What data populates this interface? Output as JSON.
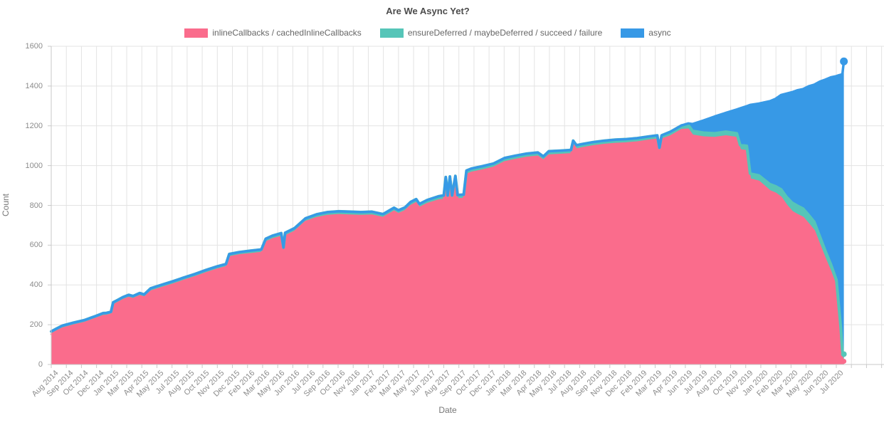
{
  "title": "Are We Async Yet?",
  "legend": {
    "items": [
      {
        "label": "inlineCallbacks / cachedInlineCallbacks",
        "color": "#FA6C8C"
      },
      {
        "label": "ensureDeferred / maybeDeferred / succeed / failure",
        "color": "#56C5B8"
      },
      {
        "label": "async",
        "color": "#3799E6"
      }
    ]
  },
  "axes": {
    "x_title": "Date",
    "y_title": "Count",
    "y_ticks": [
      "0",
      "200",
      "400",
      "600",
      "800",
      "1000",
      "1200",
      "1400",
      "1600"
    ],
    "x_ticks": [
      "Aug 2014",
      "Sep 2014",
      "Oct 2014",
      "Dec 2014",
      "Jan 2015",
      "Mar 2015",
      "Apr 2015",
      "May 2015",
      "Jul 2015",
      "Aug 2015",
      "Oct 2015",
      "Nov 2015",
      "Dec 2015",
      "Feb 2016",
      "Mar 2016",
      "May 2016",
      "Jun 2016",
      "Jul 2016",
      "Sep 2016",
      "Oct 2016",
      "Nov 2016",
      "Jan 2017",
      "Feb 2017",
      "Mar 2017",
      "May 2017",
      "Jun 2017",
      "Aug 2017",
      "Sep 2017",
      "Oct 2017",
      "Dec 2017",
      "Jan 2018",
      "Mar 2018",
      "Apr 2018",
      "May 2018",
      "Jul 2018",
      "Aug 2018",
      "Sep 2018",
      "Nov 2018",
      "Dec 2018",
      "Feb 2019",
      "Mar 2019",
      "Apr 2019",
      "Jun 2019",
      "Jul 2019",
      "Aug 2019",
      "Oct 2019",
      "Nov 2019",
      "Jan 2020",
      "Feb 2020",
      "Mar 2020",
      "May 2020",
      "Jun 2020",
      "Jul 2020"
    ]
  },
  "chart_data": {
    "type": "area",
    "stacked": true,
    "title": "Are We Async Yet?",
    "xlabel": "Date",
    "ylabel": "Count",
    "ylim": [
      0,
      1600
    ],
    "grid": true,
    "legend_position": "top",
    "x_unit": "months_since_aug_2014",
    "x_range_labels": [
      "Aug 2014",
      "Jul 2020"
    ],
    "series_names": [
      "inlineCallbacks / cachedInlineCallbacks",
      "ensureDeferred / maybeDeferred / succeed / failure",
      "async"
    ],
    "colors": [
      "#FA6C8C",
      "#56C5B8",
      "#3799E6"
    ],
    "points_format": [
      "month_index",
      "inlineCallbacks",
      "ensureDeferred",
      "async"
    ],
    "points": [
      [
        0,
        152,
        14,
        0
      ],
      [
        0.5,
        168,
        13,
        0
      ],
      [
        1,
        182,
        13,
        0
      ],
      [
        2,
        197,
        13,
        0
      ],
      [
        3,
        210,
        13,
        0
      ],
      [
        4,
        230,
        13,
        0
      ],
      [
        4.7,
        245,
        13,
        0
      ],
      [
        5,
        246,
        13,
        0
      ],
      [
        5.4,
        252,
        13,
        0
      ],
      [
        5.6,
        298,
        14,
        0
      ],
      [
        6,
        310,
        14,
        0
      ],
      [
        6.5,
        325,
        14,
        0
      ],
      [
        7,
        336,
        14,
        0
      ],
      [
        7.4,
        330,
        14,
        0
      ],
      [
        8,
        345,
        14,
        0
      ],
      [
        8.4,
        338,
        14,
        0
      ],
      [
        9,
        368,
        15,
        0
      ],
      [
        10,
        386,
        15,
        0
      ],
      [
        11,
        403,
        15,
        0
      ],
      [
        12,
        422,
        15,
        0
      ],
      [
        13,
        440,
        15,
        0
      ],
      [
        14,
        460,
        15,
        0
      ],
      [
        15,
        478,
        15,
        0
      ],
      [
        15.8,
        490,
        15,
        0
      ],
      [
        16.1,
        540,
        15,
        0
      ],
      [
        17,
        550,
        15,
        0
      ],
      [
        18,
        556,
        16,
        0
      ],
      [
        19,
        562,
        16,
        0
      ],
      [
        19.4,
        615,
        17,
        0
      ],
      [
        20,
        630,
        17,
        0
      ],
      [
        20.8,
        643,
        17,
        0
      ],
      [
        21,
        573,
        15,
        0
      ],
      [
        21.15,
        645,
        17,
        0
      ],
      [
        22,
        668,
        17,
        0
      ],
      [
        23,
        718,
        17,
        0
      ],
      [
        24,
        737,
        18,
        0
      ],
      [
        25,
        748,
        18,
        0
      ],
      [
        26,
        752,
        18,
        0
      ],
      [
        27,
        750,
        18,
        0
      ],
      [
        28,
        748,
        18,
        0
      ],
      [
        29,
        750,
        18,
        0
      ],
      [
        30,
        738,
        18,
        0
      ],
      [
        31,
        770,
        18,
        0
      ],
      [
        31.4,
        757,
        18,
        0
      ],
      [
        32,
        772,
        18,
        0
      ],
      [
        32.5,
        798,
        19,
        0
      ],
      [
        33,
        812,
        19,
        0
      ],
      [
        33.3,
        788,
        19,
        0
      ],
      [
        34,
        808,
        19,
        0
      ],
      [
        35,
        825,
        20,
        0
      ],
      [
        35.5,
        830,
        20,
        0
      ],
      [
        35.68,
        922,
        20,
        0
      ],
      [
        35.85,
        830,
        20,
        0
      ],
      [
        36.05,
        925,
        20,
        0
      ],
      [
        36.25,
        830,
        20,
        0
      ],
      [
        36.55,
        928,
        20,
        0
      ],
      [
        36.75,
        832,
        20,
        0
      ],
      [
        37.3,
        834,
        20,
        0
      ],
      [
        37.55,
        955,
        20,
        0
      ],
      [
        38,
        965,
        20,
        0
      ],
      [
        39,
        977,
        20,
        0
      ],
      [
        40,
        990,
        20,
        0
      ],
      [
        41,
        1018,
        20,
        0
      ],
      [
        42,
        1030,
        20,
        0
      ],
      [
        43,
        1040,
        20,
        0
      ],
      [
        44,
        1046,
        20,
        0
      ],
      [
        44.5,
        1026,
        20,
        0
      ],
      [
        45,
        1052,
        20,
        0
      ],
      [
        46,
        1055,
        20,
        0
      ],
      [
        47,
        1058,
        20,
        0
      ],
      [
        47.2,
        1105,
        20,
        0
      ],
      [
        47.5,
        1082,
        20,
        0
      ],
      [
        48,
        1088,
        20,
        0
      ],
      [
        49,
        1098,
        20,
        0
      ],
      [
        50,
        1105,
        20,
        0
      ],
      [
        51,
        1110,
        20,
        0
      ],
      [
        52,
        1113,
        20,
        0
      ],
      [
        53,
        1118,
        20,
        0
      ],
      [
        54,
        1126,
        20,
        0
      ],
      [
        54.8,
        1132,
        20,
        0
      ],
      [
        55,
        1070,
        20,
        0
      ],
      [
        55.2,
        1132,
        20,
        0
      ],
      [
        56,
        1148,
        22,
        0
      ],
      [
        57,
        1180,
        22,
        0
      ],
      [
        57.6,
        1182,
        22,
        8
      ],
      [
        58,
        1152,
        22,
        35
      ],
      [
        59,
        1143,
        22,
        62
      ],
      [
        60,
        1140,
        22,
        85
      ],
      [
        61,
        1148,
        22,
        95
      ],
      [
        62,
        1140,
        22,
        120
      ],
      [
        62.3,
        1078,
        25,
        185
      ],
      [
        62.9,
        1074,
        25,
        200
      ],
      [
        63.2,
        932,
        28,
        345
      ],
      [
        64,
        920,
        30,
        362
      ],
      [
        65,
        872,
        34,
        418
      ],
      [
        65.5,
        860,
        36,
        440
      ],
      [
        66,
        840,
        40,
        475
      ],
      [
        66.5,
        800,
        42,
        520
      ],
      [
        67,
        768,
        45,
        556
      ],
      [
        67.5,
        752,
        45,
        582
      ],
      [
        68,
        738,
        45,
        602
      ],
      [
        68.5,
        706,
        45,
        648
      ],
      [
        69,
        672,
        45,
        690
      ],
      [
        69.5,
        600,
        44,
        778
      ],
      [
        70,
        530,
        42,
        860
      ],
      [
        70.5,
        464,
        40,
        940
      ],
      [
        71,
        388,
        38,
        1024
      ],
      [
        71.2,
        268,
        36,
        1150
      ],
      [
        71.4,
        150,
        35,
        1272
      ],
      [
        71.55,
        30,
        34,
        1398
      ],
      [
        71.68,
        16,
        36,
        1472
      ]
    ],
    "end_marker_total": 1524
  }
}
